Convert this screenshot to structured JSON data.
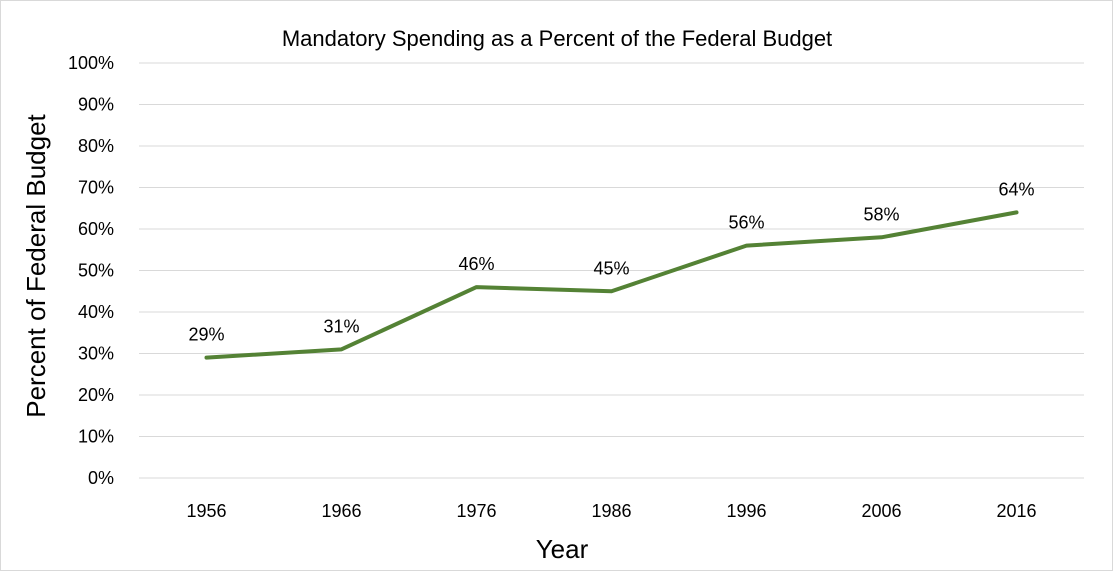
{
  "chart_data": {
    "type": "line",
    "title": "Mandatory Spending as a Percent of the Federal Budget",
    "xlabel": "Year",
    "ylabel": "Percent of Federal Budget",
    "categories": [
      "1956",
      "1966",
      "1976",
      "1986",
      "1996",
      "2006",
      "2016"
    ],
    "values": [
      29,
      31,
      46,
      45,
      56,
      58,
      64
    ],
    "data_labels": [
      "29%",
      "31%",
      "46%",
      "45%",
      "56%",
      "58%",
      "64%"
    ],
    "yticks": [
      "0%",
      "10%",
      "20%",
      "30%",
      "40%",
      "50%",
      "60%",
      "70%",
      "80%",
      "90%",
      "100%"
    ],
    "ylim": [
      0,
      100
    ],
    "grid": true,
    "legend": "none",
    "line_color": "#548235",
    "grid_color": "#d9d9d9"
  }
}
